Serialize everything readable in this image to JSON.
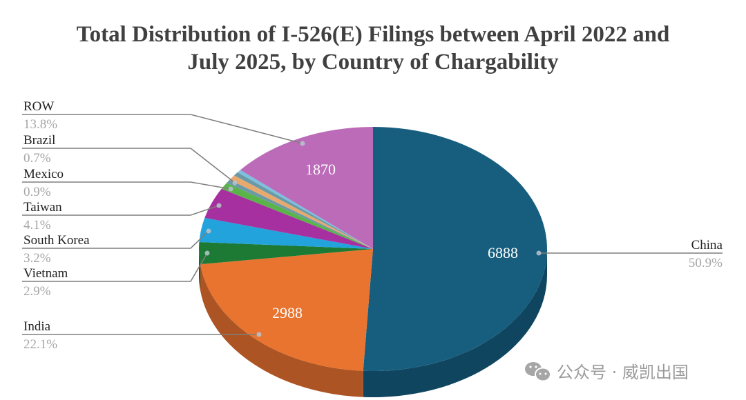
{
  "chart_data": {
    "type": "pie",
    "style": "3d",
    "title_lines": [
      "Total Distribution of I-526(E) Filings between April 2022 and",
      "July 2025, by Country of Chargability"
    ],
    "slices": [
      {
        "name": "China",
        "value": 6888,
        "percent": 50.9,
        "pct_label": "50.9%",
        "value_label": "6888",
        "color": "#175e7e",
        "side_color": "#104560",
        "label_side": "right"
      },
      {
        "name": "India",
        "value": 2988,
        "percent": 22.1,
        "pct_label": "22.1%",
        "value_label": "2988",
        "color": "#e87430",
        "side_color": "#ad5424",
        "label_side": "left"
      },
      {
        "name": "Vietnam",
        "value": null,
        "percent": 2.9,
        "pct_label": "2.9%",
        "value_label": "",
        "color": "#1c7a34",
        "side_color": "#145a26",
        "label_side": "left"
      },
      {
        "name": "South Korea",
        "value": null,
        "percent": 3.2,
        "pct_label": "3.2%",
        "value_label": "",
        "color": "#22a3db",
        "side_color": "#1a7aa5",
        "label_side": "left"
      },
      {
        "name": "Taiwan",
        "value": null,
        "percent": 4.1,
        "pct_label": "4.1%",
        "value_label": "",
        "color": "#a6309f",
        "side_color": "#7c2477",
        "label_side": "left"
      },
      {
        "name": "Mexico",
        "value": null,
        "percent": 0.9,
        "pct_label": "0.9%",
        "value_label": "",
        "color": "#5ab44a",
        "side_color": "#438738",
        "label_side": "left"
      },
      {
        "name": "",
        "value": null,
        "percent": 0.5,
        "pct_label": "",
        "value_label": "",
        "color": "#6b9aa6",
        "side_color": "#50737c",
        "label_side": "none"
      },
      {
        "name": "Brazil",
        "value": null,
        "percent": 0.7,
        "pct_label": "0.7%",
        "value_label": "",
        "color": "#e8a96e",
        "side_color": "#ae7f52",
        "label_side": "left"
      },
      {
        "name": "",
        "value": null,
        "percent": 0.5,
        "pct_label": "",
        "value_label": "",
        "color": "#6b9aa6",
        "side_color": "#50737c",
        "label_side": "none"
      },
      {
        "name": "",
        "value": null,
        "percent": 0.4,
        "pct_label": "",
        "value_label": "",
        "color": "#7cc0e0",
        "side_color": "#5d90a8",
        "label_side": "none"
      },
      {
        "name": "ROW",
        "value": 1870,
        "percent": 13.8,
        "pct_label": "13.8%",
        "value_label": "1870",
        "color": "#bb6bb8",
        "side_color": "#8c508a",
        "label_side": "left"
      }
    ],
    "start_angle": "12 o'clock",
    "direction": "clockwise",
    "legend": "none (callout labels)"
  },
  "watermark": {
    "icon": "wechat-icon",
    "text": "公众号 · 威凯出国"
  }
}
